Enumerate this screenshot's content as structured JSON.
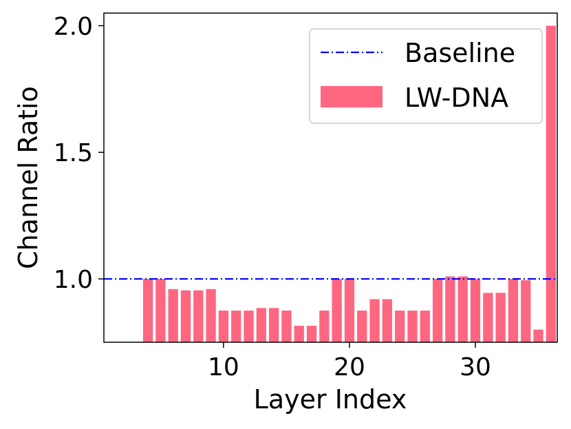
{
  "chart_data": {
    "type": "bar",
    "xlabel": "Layer Index",
    "ylabel": "Channel Ratio",
    "xlim": [
      0.5,
      36.5
    ],
    "ylim": [
      0.75,
      2.05
    ],
    "xticks": [
      10,
      20,
      30
    ],
    "yticks": [
      1.0,
      1.5,
      2.0
    ],
    "xtick_labels": [
      "10",
      "20",
      "30"
    ],
    "ytick_labels": [
      "1.0",
      "1.5",
      "2.0"
    ],
    "grid": false,
    "legend_position": "top-right",
    "baseline": {
      "name": "Baseline",
      "value": 1.0,
      "color": "#0000ff",
      "style": "dash-dot"
    },
    "series": [
      {
        "name": "LW-DNA",
        "color": "#ff6680",
        "x": [
          4,
          5,
          6,
          7,
          8,
          9,
          10,
          11,
          12,
          13,
          14,
          15,
          16,
          17,
          18,
          19,
          20,
          21,
          22,
          23,
          24,
          25,
          26,
          27,
          28,
          29,
          30,
          31,
          32,
          33,
          34,
          35,
          36
        ],
        "values": [
          1.0,
          1.0,
          0.96,
          0.955,
          0.955,
          0.96,
          0.875,
          0.875,
          0.875,
          0.885,
          0.885,
          0.875,
          0.815,
          0.815,
          0.875,
          1.0,
          1.0,
          0.875,
          0.92,
          0.92,
          0.875,
          0.875,
          0.875,
          1.0,
          1.01,
          1.01,
          1.0,
          0.945,
          0.945,
          1.0,
          0.995,
          0.8,
          2.0
        ]
      }
    ]
  }
}
